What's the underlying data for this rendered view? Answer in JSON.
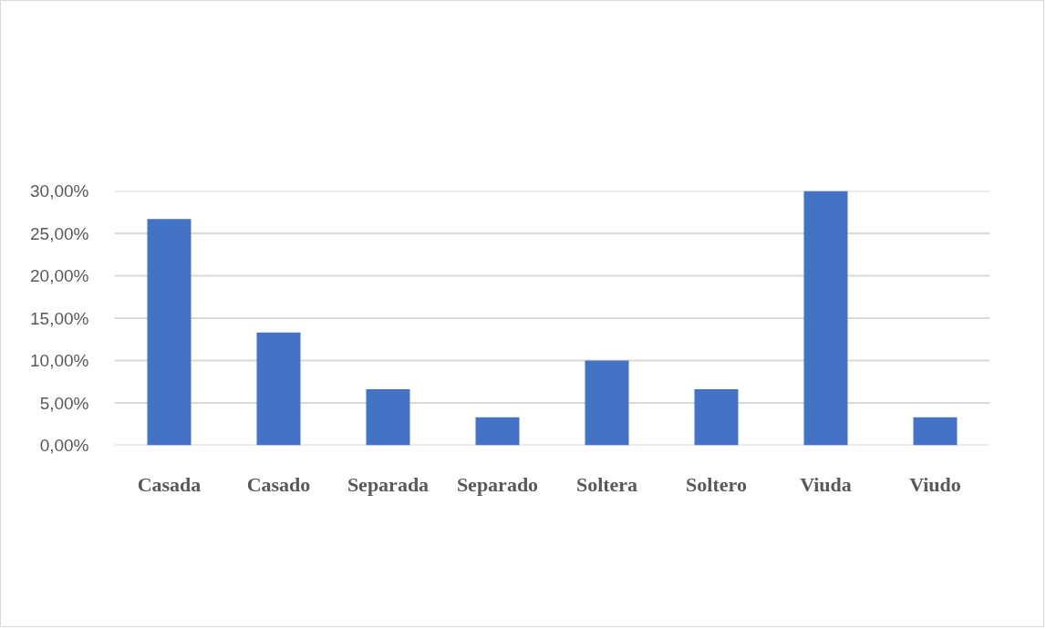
{
  "chart_data": {
    "type": "bar",
    "categories": [
      "Casada",
      "Casado",
      "Separada",
      "Separado",
      "Soltera",
      "Soltero",
      "Viuda",
      "Viudo"
    ],
    "values": [
      26.7,
      13.3,
      6.6,
      3.3,
      10.0,
      6.6,
      30.0,
      3.3
    ],
    "color": "#4472c4",
    "ylim": [
      0,
      30
    ],
    "yticks": [
      {
        "value": 0,
        "label": "0,00%"
      },
      {
        "value": 5,
        "label": "5,00%"
      },
      {
        "value": 10,
        "label": "10,00%"
      },
      {
        "value": 15,
        "label": "15,00%"
      },
      {
        "value": 20,
        "label": "20,00%"
      },
      {
        "value": 25,
        "label": "25,00%"
      },
      {
        "value": 30,
        "label": "30,00%"
      }
    ],
    "grid": "y"
  }
}
